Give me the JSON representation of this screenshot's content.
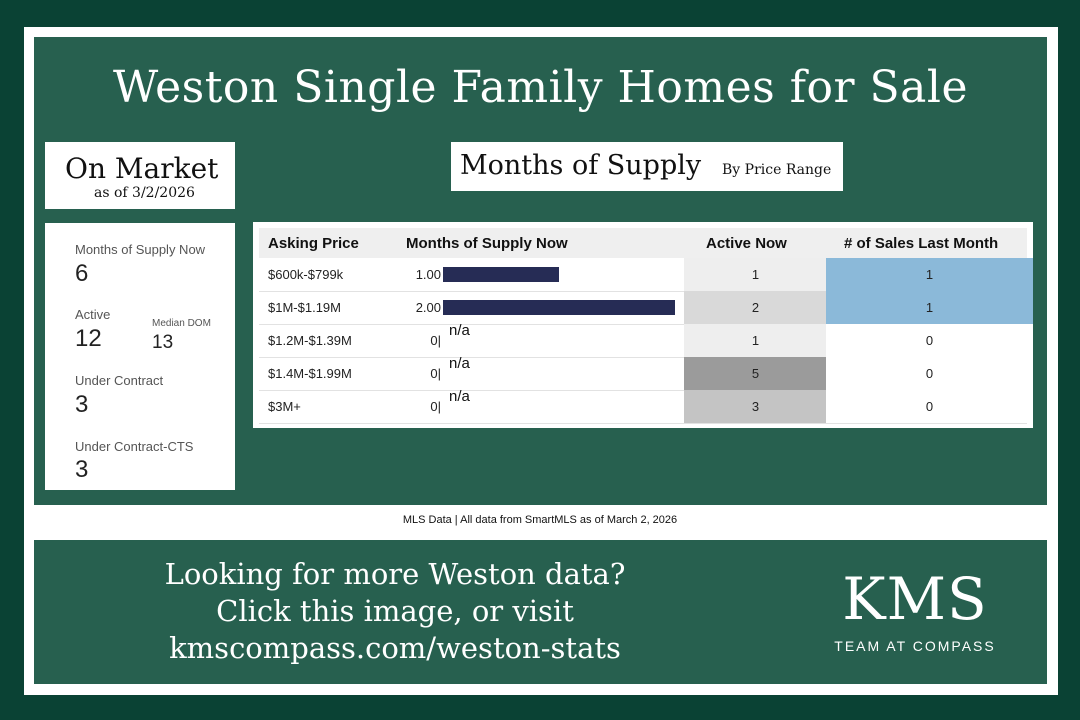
{
  "title": "Weston Single Family Homes for Sale",
  "on_market": {
    "title": "On Market",
    "date": "as of 3/2/2026"
  },
  "months_of_supply": {
    "title": "Months of Supply",
    "subtitle": "By Price Range"
  },
  "stats": {
    "mos_label": "Months of Supply Now",
    "mos_value": "6",
    "active_label": "Active",
    "active_value": "12",
    "dom_label": "Median DOM",
    "dom_value": "13",
    "uc_label": "Under Contract",
    "uc_value": "3",
    "uccts_label": "Under Contract-CTS",
    "uccts_value": "3"
  },
  "table": {
    "headers": [
      "Asking Price",
      "Months of Supply Now",
      "Active Now",
      "# of Sales Last Month"
    ],
    "rows": [
      {
        "price": "$600k-$799k",
        "mos": "1.00",
        "mos_value": 1.0,
        "na": "",
        "active": "1",
        "active_bg": "#eeeeee",
        "sales": "1",
        "sales_bg": "#8bb9d9"
      },
      {
        "price": "$1M-$1.19M",
        "mos": "2.00",
        "mos_value": 2.0,
        "na": "",
        "active": "2",
        "active_bg": "#d9d9d9",
        "sales": "1",
        "sales_bg": "#8bb9d9"
      },
      {
        "price": "$1.2M-$1.39M",
        "mos": "0",
        "mos_value": 0,
        "na": "n/a",
        "active": "1",
        "active_bg": "#eeeeee",
        "sales": "0",
        "sales_bg": "#ffffff"
      },
      {
        "price": "$1.4M-$1.99M",
        "mos": "0",
        "mos_value": 0,
        "na": "n/a",
        "active": "5",
        "active_bg": "#9b9b9b",
        "sales": "0",
        "sales_bg": "#ffffff"
      },
      {
        "price": "$3M+",
        "mos": "0",
        "mos_value": 0,
        "na": "n/a",
        "active": "3",
        "active_bg": "#c4c4c4",
        "sales": "0",
        "sales_bg": "#ffffff"
      }
    ],
    "mos_max": 2.0,
    "bar_color": "#262c55"
  },
  "footer_note": "MLS Data | All data from SmartMLS as of March 2, 2026",
  "cta": {
    "line1": "Looking for more Weston data?",
    "line2": "Click this image, or visit",
    "line3": "kmscompass.com/weston-stats"
  },
  "logo": {
    "main": "KMS",
    "sub": "TEAM AT COMPASS"
  }
}
